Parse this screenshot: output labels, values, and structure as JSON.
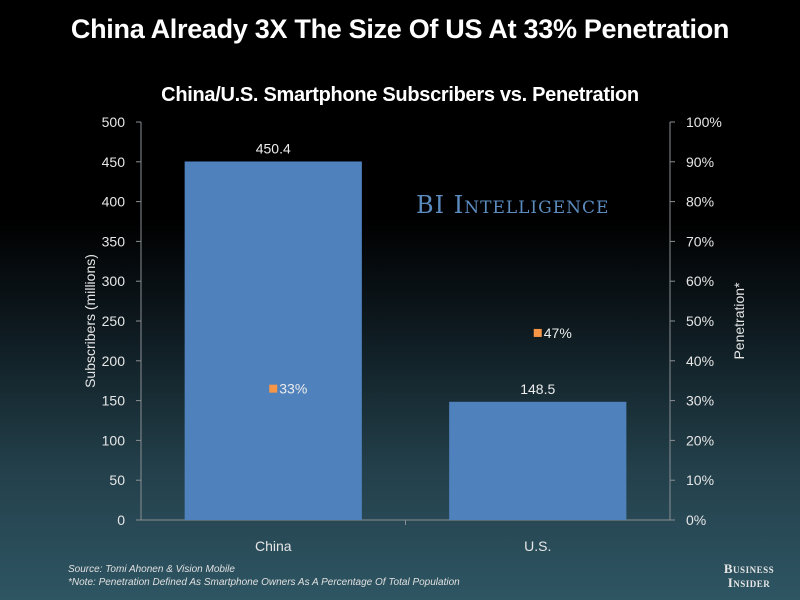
{
  "header": {
    "title": "China Already 3X The Size Of US At 33% Penetration"
  },
  "watermark": "BI Intelligence",
  "footer": {
    "source": "Source: Tomi Ahonen & Vision Mobile",
    "note": "*Note: Penetration Defined As Smartphone Owners As A Percentage Of Total Population",
    "brand_line1": "Business",
    "brand_line2": "Insider"
  },
  "colors": {
    "bar": "#4f81bd",
    "marker": "#f79646",
    "axis": "#8a8f93"
  },
  "chart_data": {
    "type": "bar",
    "title": "China/U.S. Smartphone Subscribers vs. Penetration",
    "categories": [
      "China",
      "U.S."
    ],
    "series": [
      {
        "name": "Subscribers (millions)",
        "type": "bar",
        "axis": "left",
        "values": [
          450.4,
          148.5
        ],
        "labels": [
          "450.4",
          "148.5"
        ]
      },
      {
        "name": "Penetration*",
        "type": "scatter",
        "axis": "right",
        "values": [
          33,
          47
        ],
        "labels": [
          "33%",
          "47%"
        ]
      }
    ],
    "ylabel": "Subscribers (millions)",
    "ylabel_right": "Penetration*",
    "ylim": [
      0,
      500
    ],
    "yticks": [
      0,
      50,
      100,
      150,
      200,
      250,
      300,
      350,
      400,
      450,
      500
    ],
    "ylim_right": [
      0,
      100
    ],
    "yticks_right": [
      "0%",
      "10%",
      "20%",
      "30%",
      "40%",
      "50%",
      "60%",
      "70%",
      "80%",
      "90%",
      "100%"
    ],
    "grid": false,
    "legend": "none"
  }
}
